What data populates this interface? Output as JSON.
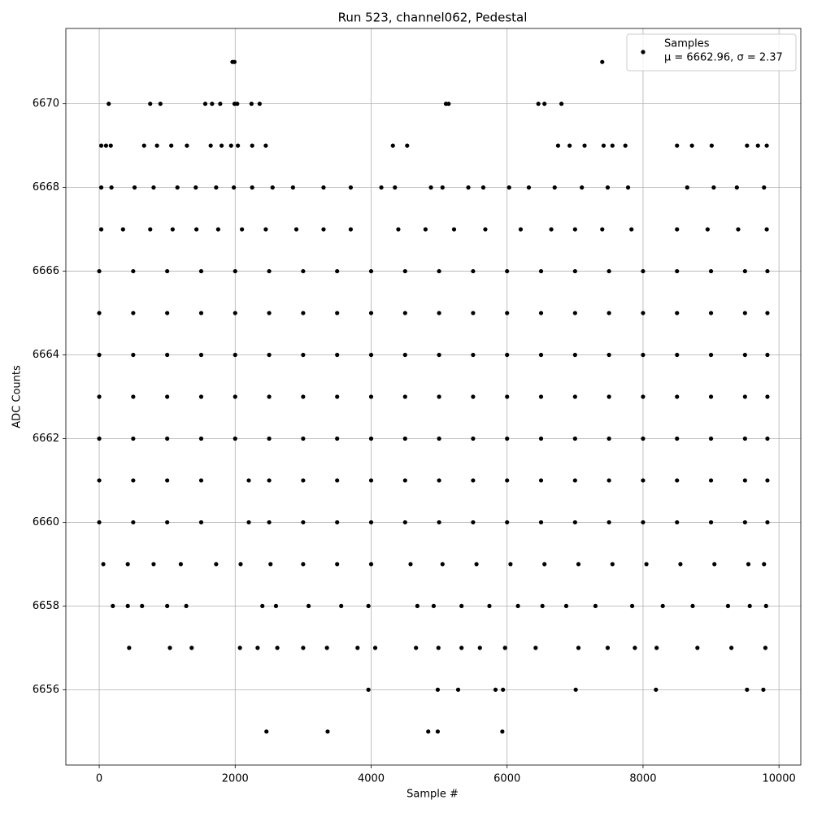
{
  "chart_data": {
    "type": "scatter",
    "title": "Run 523, channel062, Pedestal",
    "xlabel": "Sample #",
    "ylabel": "ADC Counts",
    "xlim": [
      -491,
      10321
    ],
    "ylim": [
      6654.2,
      6671.8
    ],
    "xticks": [
      0,
      2000,
      4000,
      6000,
      8000,
      10000
    ],
    "yticks": [
      6656,
      6658,
      6660,
      6662,
      6664,
      6666,
      6668,
      6670
    ],
    "grid": true,
    "legend": "upper right",
    "x": [
      1960,
      1990,
      7400,
      140,
      750,
      900,
      1560,
      1660,
      1780,
      1990,
      2030,
      2240,
      2360,
      5100,
      5140,
      6460,
      6550,
      6800,
      30,
      100,
      170,
      660,
      850,
      1060,
      1290,
      1640,
      1800,
      1940,
      2040,
      2250,
      2450,
      4320,
      4530,
      6750,
      6920,
      7140,
      7420,
      7550,
      7740,
      8500,
      8720,
      9010,
      9530,
      9690,
      9820,
      30,
      180,
      520,
      800,
      1150,
      1420,
      1720,
      1980,
      2250,
      2550,
      2850,
      3300,
      3700,
      4150,
      4350,
      4880,
      5050,
      5430,
      5650,
      6030,
      6320,
      6700,
      7100,
      7480,
      7780,
      8650,
      9040,
      9380,
      9780,
      30,
      350,
      750,
      1080,
      1430,
      1750,
      2100,
      2450,
      2900,
      3300,
      3700,
      4400,
      4800,
      5220,
      5680,
      6200,
      6650,
      7000,
      7400,
      7830,
      8500,
      8950,
      9400,
      9820,
      0,
      500,
      1000,
      1500,
      2000,
      2500,
      3000,
      3500,
      4000,
      4500,
      5000,
      5500,
      6000,
      6500,
      7000,
      7500,
      8000,
      8500,
      9000,
      9500,
      9830,
      0,
      500,
      1000,
      1500,
      2000,
      2500,
      3000,
      3500,
      4000,
      4500,
      5000,
      5500,
      6000,
      6500,
      7000,
      7500,
      8000,
      8500,
      9000,
      9500,
      9830,
      0,
      500,
      1000,
      1500,
      2000,
      2500,
      3000,
      3500,
      4000,
      4500,
      5000,
      5500,
      6000,
      6500,
      7000,
      7500,
      8000,
      8500,
      9000,
      9500,
      9830,
      0,
      500,
      1000,
      1500,
      2000,
      2500,
      3000,
      3500,
      4000,
      4500,
      5000,
      5500,
      6000,
      6500,
      7000,
      7500,
      8000,
      8500,
      9000,
      9500,
      9830,
      0,
      500,
      1000,
      1500,
      2000,
      2500,
      3000,
      3500,
      4000,
      4500,
      5000,
      5500,
      6000,
      6500,
      7000,
      7500,
      8000,
      8500,
      9000,
      9500,
      9830,
      0,
      500,
      1000,
      1500,
      2200,
      2500,
      3000,
      3500,
      4000,
      4500,
      5000,
      5500,
      6000,
      6500,
      7000,
      7500,
      8000,
      8500,
      9000,
      9500,
      9830,
      0,
      500,
      1000,
      1500,
      2200,
      2500,
      3000,
      3500,
      4000,
      4500,
      5000,
      5500,
      6000,
      6500,
      7000,
      7500,
      8000,
      8500,
      9000,
      9500,
      9830,
      60,
      420,
      800,
      1200,
      1720,
      2080,
      2520,
      3000,
      3500,
      4000,
      4580,
      5050,
      5550,
      6050,
      6550,
      7050,
      7550,
      8050,
      8550,
      9050,
      9550,
      9780,
      200,
      420,
      630,
      1000,
      1280,
      2400,
      2600,
      3080,
      3560,
      3960,
      4680,
      4920,
      5330,
      5740,
      6160,
      6520,
      6870,
      7300,
      7840,
      8290,
      8730,
      9250,
      9570,
      9810,
      440,
      1040,
      1360,
      2070,
      2330,
      2620,
      3000,
      3350,
      3800,
      4060,
      4660,
      4990,
      5330,
      5600,
      5970,
      6420,
      7050,
      7480,
      7880,
      8200,
      8800,
      9300,
      9800,
      3960,
      4980,
      5280,
      5830,
      5940,
      7010,
      8190,
      9530,
      9770,
      2460,
      3360,
      4840,
      4980,
      5930
    ],
    "series": [
      {
        "name": "Samples",
        "stats_label": "μ = 6662.96, σ = 2.37",
        "color": "#000000",
        "values": [
          6671,
          6671,
          6671,
          6670,
          6670,
          6670,
          6670,
          6670,
          6670,
          6670,
          6670,
          6670,
          6670,
          6670,
          6670,
          6670,
          6670,
          6670,
          6669,
          6669,
          6669,
          6669,
          6669,
          6669,
          6669,
          6669,
          6669,
          6669,
          6669,
          6669,
          6669,
          6669,
          6669,
          6669,
          6669,
          6669,
          6669,
          6669,
          6669,
          6669,
          6669,
          6669,
          6669,
          6669,
          6669,
          6668,
          6668,
          6668,
          6668,
          6668,
          6668,
          6668,
          6668,
          6668,
          6668,
          6668,
          6668,
          6668,
          6668,
          6668,
          6668,
          6668,
          6668,
          6668,
          6668,
          6668,
          6668,
          6668,
          6668,
          6668,
          6668,
          6668,
          6668,
          6668,
          6667,
          6667,
          6667,
          6667,
          6667,
          6667,
          6667,
          6667,
          6667,
          6667,
          6667,
          6667,
          6667,
          6667,
          6667,
          6667,
          6667,
          6667,
          6667,
          6667,
          6667,
          6667,
          6667,
          6667,
          6666,
          6666,
          6666,
          6666,
          6666,
          6666,
          6666,
          6666,
          6666,
          6666,
          6666,
          6666,
          6666,
          6666,
          6666,
          6666,
          6666,
          6666,
          6666,
          6666,
          6666,
          6665,
          6665,
          6665,
          6665,
          6665,
          6665,
          6665,
          6665,
          6665,
          6665,
          6665,
          6665,
          6665,
          6665,
          6665,
          6665,
          6665,
          6665,
          6665,
          6665,
          6665,
          6664,
          6664,
          6664,
          6664,
          6664,
          6664,
          6664,
          6664,
          6664,
          6664,
          6664,
          6664,
          6664,
          6664,
          6664,
          6664,
          6664,
          6664,
          6664,
          6664,
          6664,
          6663,
          6663,
          6663,
          6663,
          6663,
          6663,
          6663,
          6663,
          6663,
          6663,
          6663,
          6663,
          6663,
          6663,
          6663,
          6663,
          6663,
          6663,
          6663,
          6663,
          6663,
          6662,
          6662,
          6662,
          6662,
          6662,
          6662,
          6662,
          6662,
          6662,
          6662,
          6662,
          6662,
          6662,
          6662,
          6662,
          6662,
          6662,
          6662,
          6662,
          6662,
          6662,
          6661,
          6661,
          6661,
          6661,
          6661,
          6661,
          6661,
          6661,
          6661,
          6661,
          6661,
          6661,
          6661,
          6661,
          6661,
          6661,
          6661,
          6661,
          6661,
          6661,
          6661,
          6660,
          6660,
          6660,
          6660,
          6660,
          6660,
          6660,
          6660,
          6660,
          6660,
          6660,
          6660,
          6660,
          6660,
          6660,
          6660,
          6660,
          6660,
          6660,
          6660,
          6660,
          6659,
          6659,
          6659,
          6659,
          6659,
          6659,
          6659,
          6659,
          6659,
          6659,
          6659,
          6659,
          6659,
          6659,
          6659,
          6659,
          6659,
          6659,
          6659,
          6659,
          6659,
          6659,
          6658,
          6658,
          6658,
          6658,
          6658,
          6658,
          6658,
          6658,
          6658,
          6658,
          6658,
          6658,
          6658,
          6658,
          6658,
          6658,
          6658,
          6658,
          6658,
          6658,
          6658,
          6658,
          6658,
          6658,
          6657,
          6657,
          6657,
          6657,
          6657,
          6657,
          6657,
          6657,
          6657,
          6657,
          6657,
          6657,
          6657,
          6657,
          6657,
          6657,
          6657,
          6657,
          6657,
          6657,
          6657,
          6657,
          6657,
          6656,
          6656,
          6656,
          6656,
          6656,
          6656,
          6656,
          6656,
          6656,
          6655,
          6655,
          6655,
          6655,
          6655
        ]
      }
    ]
  }
}
